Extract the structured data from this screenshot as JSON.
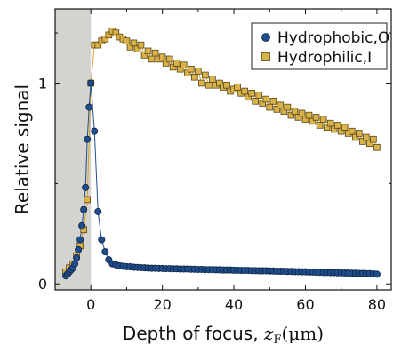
{
  "chart_data": {
    "type": "scatter",
    "xlabel": "Depth of focus, z_F(μm)",
    "xlabel_parts": {
      "main": "Depth of focus, ",
      "sym": "z",
      "sub": "F",
      "unit": "(μm)"
    },
    "ylabel": "Relative signal",
    "xlim": [
      -10,
      84
    ],
    "ylim": [
      -0.03,
      1.37
    ],
    "xticks": [
      0,
      20,
      40,
      60,
      80
    ],
    "yticks": [
      0,
      1
    ],
    "xtick_labels": [
      "0",
      "20",
      "40",
      "60",
      "80"
    ],
    "ytick_labels": [
      "0",
      "1"
    ],
    "shaded_region": {
      "x": [
        -10,
        0
      ],
      "color": "#d3d3d0"
    },
    "legend": {
      "position": "top-right"
    },
    "series": [
      {
        "name": "Hydrophobic,O",
        "marker": "circle",
        "fill": "#1f4e8c",
        "edge": "#0d2244",
        "line_color": "#1f4e8c",
        "x": [
          -7,
          -6.5,
          -6,
          -5.5,
          -5,
          -4.5,
          -4,
          -3.5,
          -3,
          -2.5,
          -2,
          -1.5,
          -1,
          -0.5,
          0,
          1,
          2,
          3,
          4,
          5,
          6,
          7,
          8,
          9,
          10,
          11,
          12,
          13,
          14,
          15,
          16,
          17,
          18,
          19,
          20,
          21,
          22,
          23,
          24,
          25,
          26,
          27,
          28,
          29,
          30,
          31,
          32,
          33,
          34,
          35,
          36,
          37,
          38,
          39,
          40,
          41,
          42,
          43,
          44,
          45,
          46,
          47,
          48,
          49,
          50,
          51,
          52,
          53,
          54,
          55,
          56,
          57,
          58,
          59,
          60,
          61,
          62,
          63,
          64,
          65,
          66,
          67,
          68,
          69,
          70,
          71,
          72,
          73,
          74,
          75,
          76,
          77,
          78,
          79,
          80
        ],
        "y": [
          0.04,
          0.05,
          0.06,
          0.07,
          0.08,
          0.1,
          0.13,
          0.17,
          0.22,
          0.29,
          0.37,
          0.48,
          0.72,
          0.88,
          1.0,
          0.76,
          0.36,
          0.22,
          0.16,
          0.12,
          0.1,
          0.095,
          0.09,
          0.088,
          0.086,
          0.085,
          0.083,
          0.082,
          0.081,
          0.08,
          0.079,
          0.078,
          0.078,
          0.077,
          0.077,
          0.076,
          0.076,
          0.075,
          0.075,
          0.074,
          0.074,
          0.074,
          0.073,
          0.073,
          0.072,
          0.072,
          0.071,
          0.071,
          0.071,
          0.07,
          0.07,
          0.069,
          0.069,
          0.069,
          0.068,
          0.068,
          0.067,
          0.067,
          0.067,
          0.066,
          0.066,
          0.065,
          0.065,
          0.065,
          0.064,
          0.064,
          0.063,
          0.063,
          0.063,
          0.062,
          0.062,
          0.061,
          0.061,
          0.06,
          0.06,
          0.059,
          0.059,
          0.058,
          0.058,
          0.057,
          0.057,
          0.056,
          0.056,
          0.055,
          0.055,
          0.054,
          0.054,
          0.053,
          0.053,
          0.052,
          0.052,
          0.051,
          0.051,
          0.05,
          0.048
        ]
      },
      {
        "name": "Hydrophilic,I",
        "marker": "square",
        "fill": "#d9b24a",
        "edge": "#5a4510",
        "line_color": "#d9a030",
        "x": [
          -7,
          -6,
          -5,
          -4,
          -3,
          -2,
          -1,
          0,
          1,
          2,
          3,
          4,
          5,
          6,
          7,
          8,
          9,
          10,
          11,
          12,
          13,
          14,
          15,
          16,
          17,
          18,
          19,
          20,
          21,
          22,
          23,
          24,
          25,
          26,
          27,
          28,
          29,
          30,
          31,
          32,
          33,
          34,
          35,
          36,
          37,
          38,
          39,
          40,
          41,
          42,
          43,
          44,
          45,
          46,
          47,
          48,
          49,
          50,
          51,
          52,
          53,
          54,
          55,
          56,
          57,
          58,
          59,
          60,
          61,
          62,
          63,
          64,
          65,
          66,
          67,
          68,
          69,
          70,
          71,
          72,
          73,
          74,
          75,
          76,
          77,
          78,
          79,
          80
        ],
        "y": [
          0.06,
          0.08,
          0.1,
          0.14,
          0.19,
          0.27,
          0.42,
          1.0,
          1.19,
          1.19,
          1.21,
          1.22,
          1.24,
          1.26,
          1.25,
          1.23,
          1.22,
          1.21,
          1.18,
          1.2,
          1.17,
          1.19,
          1.14,
          1.16,
          1.12,
          1.15,
          1.12,
          1.13,
          1.1,
          1.12,
          1.08,
          1.1,
          1.07,
          1.09,
          1.05,
          1.07,
          1.03,
          1.06,
          1.0,
          1.04,
          0.99,
          1.02,
          0.99,
          1.0,
          0.98,
          0.99,
          0.96,
          0.97,
          0.98,
          0.95,
          0.96,
          0.93,
          0.95,
          0.91,
          0.94,
          0.9,
          0.92,
          0.88,
          0.91,
          0.87,
          0.89,
          0.86,
          0.88,
          0.84,
          0.86,
          0.83,
          0.85,
          0.82,
          0.84,
          0.81,
          0.83,
          0.79,
          0.82,
          0.78,
          0.8,
          0.77,
          0.79,
          0.76,
          0.78,
          0.75,
          0.76,
          0.73,
          0.75,
          0.71,
          0.73,
          0.7,
          0.72,
          0.68
        ]
      }
    ]
  }
}
